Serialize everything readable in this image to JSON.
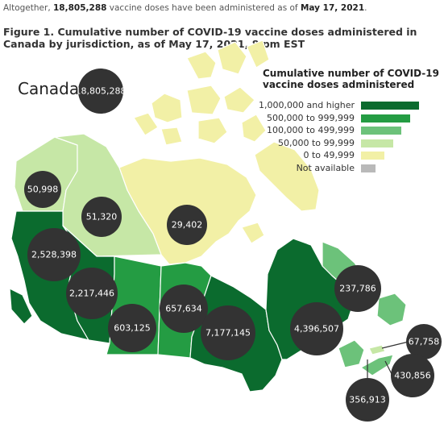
{
  "intro": {
    "prefix": "Altogether, ",
    "total": "18,805,288",
    "middle": " vaccine doses have been administered as of ",
    "date": "May 17, 2021",
    "suffix": "."
  },
  "figure_title": "Figure 1. Cumulative number of COVID-19 vaccine doses administered in Canada by jurisdiction, as of May 17, 2021, 8 pm EST",
  "country": {
    "name": "Canada",
    "total": "18,805,288"
  },
  "legend": {
    "title": "Cumulative number of COVID-19 vaccine doses administered",
    "items": [
      {
        "label": "1,000,000 and higher",
        "color": "#0b6b2e",
        "level": 1.0
      },
      {
        "label": "500,000 to 999,999",
        "color": "#249c43",
        "level": 0.85
      },
      {
        "label": "100,000 to 499,999",
        "color": "#6cc27a",
        "level": 0.7
      },
      {
        "label": "50,000 to 99,999",
        "color": "#c6e7a6",
        "level": 0.55
      },
      {
        "label": "0 to 49,999",
        "color": "#f2f0a6",
        "level": 0.4
      },
      {
        "label": "Not available",
        "color": "#b9b9b9",
        "level": 0.25
      }
    ]
  },
  "jurisdictions": {
    "yukon": {
      "value": "50,998"
    },
    "northwest_territories": {
      "value": "51,320"
    },
    "nunavut": {
      "value": "29,402"
    },
    "british_columbia": {
      "value": "2,528,398"
    },
    "alberta": {
      "value": "2,217,446"
    },
    "saskatchewan": {
      "value": "603,125"
    },
    "manitoba": {
      "value": "657,634"
    },
    "ontario": {
      "value": "7,177,145"
    },
    "quebec": {
      "value": "4,396,507"
    },
    "newfoundland_labrador": {
      "value": "237,786"
    },
    "prince_edward_island": {
      "value": "67,758"
    },
    "nova_scotia": {
      "value": "430,856"
    },
    "new_brunswick": {
      "value": "356,913"
    }
  },
  "colors": {
    "over_1m": "#0b6b2e",
    "500k_1m": "#249c43",
    "100k_500k": "#6cc27a",
    "50k_100k": "#c6e7a6",
    "0_50k": "#f2f0a6",
    "bubble": "#333333"
  }
}
